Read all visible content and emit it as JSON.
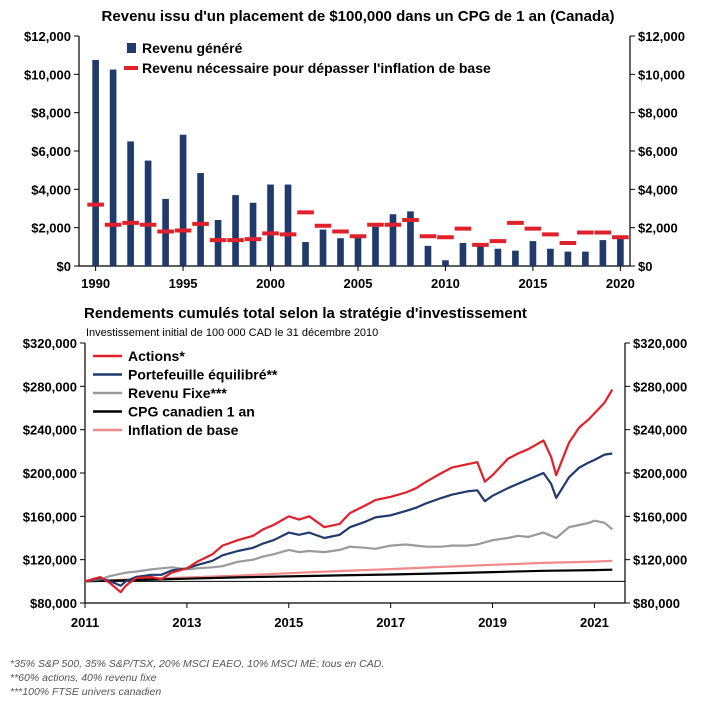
{
  "chart_data": [
    {
      "type": "bar",
      "title": "Revenu issu d'un placement de $100,000 dans un CPG de 1 an (Canada)",
      "xlabel": "",
      "ylabel": "",
      "ylim": [
        0,
        12000
      ],
      "yticks": [
        "$0",
        "$2,000",
        "$4,000",
        "$6,000",
        "$8,000",
        "$10,000",
        "$12,000"
      ],
      "xticks": [
        "1990",
        "1995",
        "2000",
        "2005",
        "2010",
        "2015",
        "2020"
      ],
      "legend_position": "top-left",
      "grid": false,
      "categories": [
        1990,
        1991,
        1992,
        1993,
        1994,
        1995,
        1996,
        1997,
        1998,
        1999,
        2000,
        2001,
        2002,
        2003,
        2004,
        2005,
        2006,
        2007,
        2008,
        2009,
        2010,
        2011,
        2012,
        2013,
        2014,
        2015,
        2016,
        2017,
        2018,
        2019,
        2020
      ],
      "series": [
        {
          "name": "Revenu généré",
          "kind": "bar",
          "color": "#1f3a6b",
          "values": [
            10750,
            10250,
            6500,
            5500,
            3500,
            6850,
            4850,
            2400,
            3700,
            3300,
            4250,
            4250,
            1250,
            1900,
            1450,
            1600,
            2050,
            2700,
            2850,
            1050,
            300,
            1200,
            1100,
            900,
            800,
            1300,
            900,
            750,
            750,
            1350,
            1450
          ]
        },
        {
          "name": "Revenu nécessaire pour dépasser l'inflation de base",
          "kind": "dash",
          "color": "#e0202a",
          "values": [
            3200,
            2150,
            2250,
            2150,
            1800,
            1850,
            2200,
            1350,
            1350,
            1400,
            1700,
            1650,
            2800,
            2100,
            1800,
            1550,
            2150,
            2150,
            2400,
            1550,
            1500,
            1950,
            1100,
            1300,
            2250,
            1950,
            1650,
            1200,
            1750,
            1750,
            1500
          ]
        }
      ]
    },
    {
      "type": "line",
      "title": "Rendements cumulés total selon la stratégie d'investissement",
      "subtitle": "Investissement initial de 100 000 CAD le 31 décembre 2010",
      "xlabel": "",
      "ylabel": "",
      "xlim": [
        2011,
        2021.6
      ],
      "ylim": [
        80000,
        320000
      ],
      "yticks": [
        "$80,000",
        "$120,000",
        "$160,000",
        "$200,000",
        "$240,000",
        "$280,000",
        "$320,000"
      ],
      "xticks": [
        "2011",
        "2013",
        "2015",
        "2017",
        "2019",
        "2021"
      ],
      "legend_position": "top-left",
      "grid": false,
      "series": [
        {
          "name": "Actions*",
          "color": "#e0202a",
          "x": [
            2011.0,
            2011.3,
            2011.5,
            2011.7,
            2011.8,
            2012.0,
            2012.3,
            2012.5,
            2012.7,
            2013.0,
            2013.2,
            2013.5,
            2013.7,
            2014.0,
            2014.3,
            2014.5,
            2014.7,
            2015.0,
            2015.2,
            2015.4,
            2015.7,
            2016.0,
            2016.2,
            2016.5,
            2016.7,
            2017.0,
            2017.3,
            2017.5,
            2017.7,
            2018.0,
            2018.2,
            2018.5,
            2018.7,
            2018.85,
            2019.0,
            2019.3,
            2019.5,
            2019.7,
            2020.0,
            2020.15,
            2020.25,
            2020.5,
            2020.7,
            2020.9,
            2021.0,
            2021.2,
            2021.35
          ],
          "y": [
            100000,
            104000,
            98000,
            90000,
            96000,
            103000,
            104000,
            102000,
            108000,
            112000,
            118000,
            125000,
            133000,
            138000,
            142000,
            148000,
            152000,
            160000,
            157000,
            160000,
            150000,
            153000,
            163000,
            170000,
            175000,
            178000,
            182000,
            186000,
            192000,
            200000,
            205000,
            208000,
            210000,
            192000,
            198000,
            213000,
            218000,
            222000,
            230000,
            215000,
            198000,
            228000,
            242000,
            250000,
            255000,
            265000,
            277000
          ]
        },
        {
          "name": "Portefeuille équilibré**",
          "color": "#1f3a6b",
          "x": [
            2011.0,
            2011.3,
            2011.5,
            2011.7,
            2011.8,
            2012.0,
            2012.3,
            2012.5,
            2012.7,
            2013.0,
            2013.2,
            2013.5,
            2013.7,
            2014.0,
            2014.3,
            2014.5,
            2014.7,
            2015.0,
            2015.2,
            2015.4,
            2015.7,
            2016.0,
            2016.2,
            2016.5,
            2016.7,
            2017.0,
            2017.3,
            2017.5,
            2017.7,
            2018.0,
            2018.2,
            2018.5,
            2018.7,
            2018.85,
            2019.0,
            2019.3,
            2019.5,
            2019.7,
            2020.0,
            2020.15,
            2020.25,
            2020.5,
            2020.7,
            2020.9,
            2021.0,
            2021.2,
            2021.35
          ],
          "y": [
            100000,
            103000,
            100000,
            96000,
            100000,
            104000,
            106000,
            106000,
            110000,
            112000,
            115000,
            119000,
            124000,
            128000,
            131000,
            135000,
            138000,
            145000,
            143000,
            145000,
            140000,
            143000,
            150000,
            155000,
            159000,
            161000,
            165000,
            168000,
            172000,
            177000,
            180000,
            183000,
            184000,
            174000,
            179000,
            186000,
            190000,
            194000,
            200000,
            190000,
            177000,
            196000,
            205000,
            210000,
            212000,
            217000,
            218000
          ]
        },
        {
          "name": "Revenu Fixe***",
          "color": "#9a9a9a",
          "x": [
            2011.0,
            2011.3,
            2011.5,
            2011.7,
            2011.8,
            2012.0,
            2012.3,
            2012.5,
            2012.7,
            2013.0,
            2013.2,
            2013.5,
            2013.7,
            2014.0,
            2014.3,
            2014.5,
            2014.7,
            2015.0,
            2015.2,
            2015.4,
            2015.7,
            2016.0,
            2016.2,
            2016.5,
            2016.7,
            2017.0,
            2017.3,
            2017.5,
            2017.7,
            2018.0,
            2018.2,
            2018.5,
            2018.7,
            2018.85,
            2019.0,
            2019.3,
            2019.5,
            2019.7,
            2020.0,
            2020.15,
            2020.25,
            2020.5,
            2020.7,
            2020.9,
            2021.0,
            2021.2,
            2021.35
          ],
          "y": [
            100000,
            102000,
            105000,
            107000,
            108000,
            109000,
            111000,
            112000,
            113000,
            111000,
            112000,
            113000,
            114000,
            118000,
            120000,
            123000,
            125000,
            129000,
            127000,
            128000,
            127000,
            129000,
            132000,
            131000,
            130000,
            133000,
            134000,
            133000,
            132000,
            132000,
            133000,
            133000,
            134000,
            136000,
            138000,
            140000,
            142000,
            141000,
            145000,
            142000,
            140000,
            150000,
            152000,
            154000,
            156000,
            154000,
            148000
          ]
        },
        {
          "name": "CPG canadien 1 an",
          "color": "#000000",
          "x": [
            2011.0,
            2012.0,
            2013.0,
            2014.0,
            2015.0,
            2016.0,
            2017.0,
            2018.0,
            2019.0,
            2020.0,
            2021.0,
            2021.35
          ],
          "y": [
            100000,
            101200,
            102400,
            103600,
            104600,
            105500,
            106300,
            107300,
            108500,
            109700,
            110400,
            110700
          ]
        },
        {
          "name": "Inflation de base",
          "color": "#f08a8a",
          "x": [
            2011.0,
            2012.0,
            2013.0,
            2014.0,
            2015.0,
            2016.0,
            2017.0,
            2018.0,
            2019.0,
            2020.0,
            2021.0,
            2021.35
          ],
          "y": [
            100000,
            102100,
            103500,
            105300,
            107500,
            109500,
            111300,
            113300,
            115300,
            117000,
            118200,
            119000
          ]
        }
      ]
    }
  ],
  "footnotes": [
    "*35% S&P 500, 35% S&P/TSX, 20% MSCI EAEO, 10% MSCI MÉ: tous en CAD.",
    "**60% actions, 40% revenu fixe",
    "***100% FTSE univers canadien"
  ]
}
